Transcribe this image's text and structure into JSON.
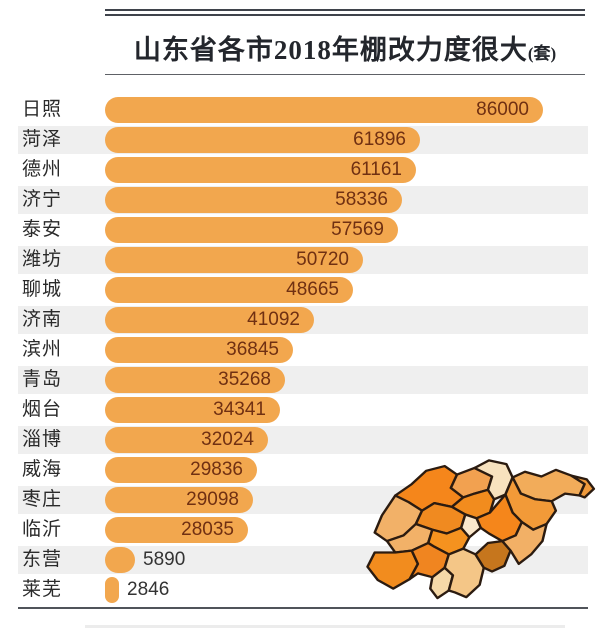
{
  "header": {
    "title": "山东省各市2018年棚改力度很大",
    "unit": "(套)"
  },
  "chart_data": {
    "type": "bar",
    "orientation": "horizontal",
    "title": "山东省各市2018年棚改力度很大",
    "unit_label": "套",
    "categories": [
      "日照",
      "菏泽",
      "德州",
      "济宁",
      "泰安",
      "潍坊",
      "聊城",
      "济南",
      "滨州",
      "青岛",
      "烟台",
      "淄博",
      "威海",
      "枣庄",
      "临沂",
      "东营",
      "莱芜"
    ],
    "values": [
      86000,
      61896,
      61161,
      58336,
      57569,
      50720,
      48665,
      41092,
      36845,
      35268,
      34341,
      32024,
      29836,
      29098,
      28035,
      5890,
      2846
    ],
    "xlim": [
      0,
      86000
    ],
    "grid": false,
    "legend": "none",
    "value_labels": "shown, inside bar right-aligned; outside bar for short bars"
  },
  "colors": {
    "bar": "#F2A74E",
    "value_inside": "#703012",
    "value_outside": "#333333",
    "city_label": "#2A2A2A",
    "stripe": "#EFEFEF",
    "title": "#23262C",
    "rule_dark": "#3F434B",
    "rule_mid": "#5E6166",
    "rule_bottom": "#50545A",
    "artifact": "#ECECEC"
  },
  "map": {
    "name": "shandong-province-map",
    "outline": "#2B1B10",
    "palette": [
      "#F5861B",
      "#F2B168",
      "#F2A150",
      "#F8E2BE",
      "#F28C1E",
      "#F2AC5A",
      "#EF9A3C",
      "#F29A38",
      "#F5861B",
      "#F08A20",
      "#F2B168",
      "#F28C1E",
      "#F5921F",
      "#FAE8CC",
      "#F08520",
      "#F6D9A8",
      "#F4C687",
      "#C6761D",
      "#F2B066"
    ]
  }
}
